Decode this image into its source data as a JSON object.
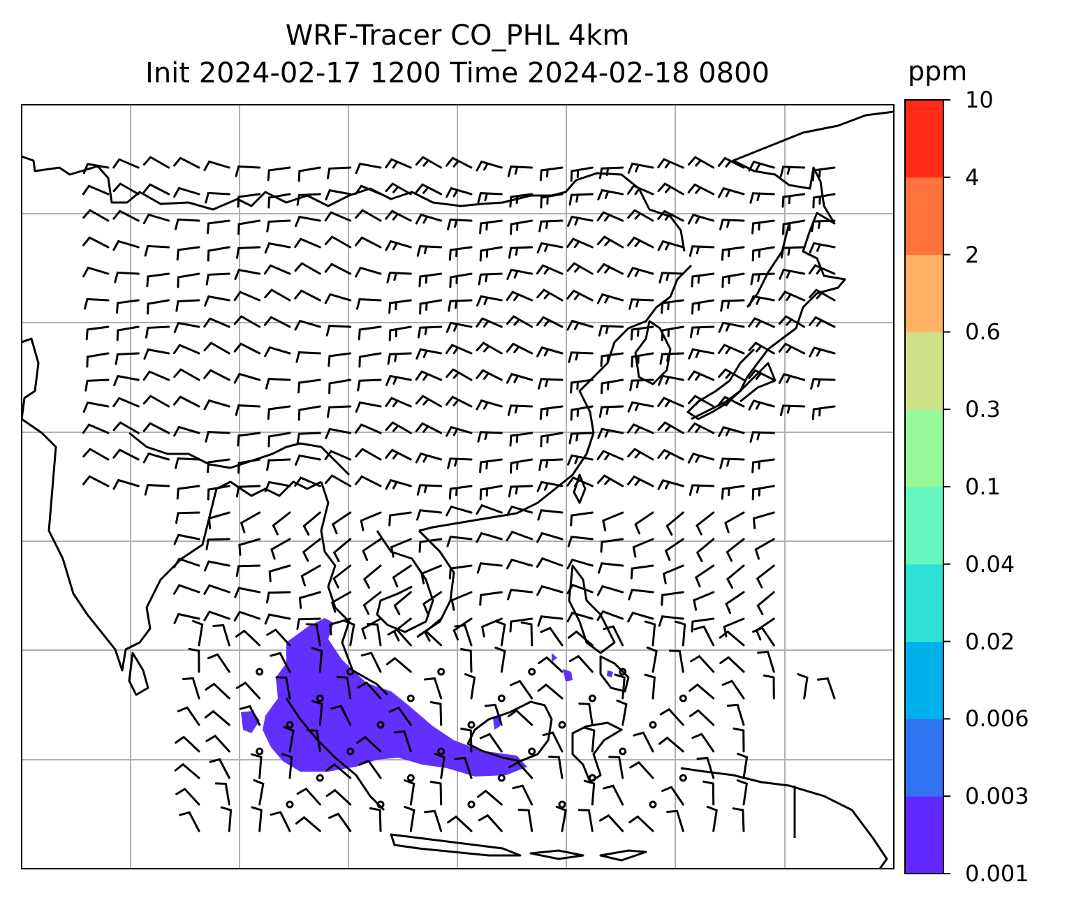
{
  "title": {
    "line1": "WRF-Tracer CO_PHL 4km",
    "line2": "Init 2024-02-17 1200 Time 2024-02-18 0800"
  },
  "map": {
    "region": "Asia",
    "gridlines": true,
    "tracer_color": "#6130ff",
    "coastline_color": "#000000",
    "gridline_color": "#b0b0b0",
    "wind_barbs": true
  },
  "colorbar": {
    "unit": "ppm",
    "ticks": [
      "0.001",
      "0.003",
      "0.006",
      "0.02",
      "0.04",
      "0.1",
      "0.3",
      "0.6",
      "2",
      "4",
      "10"
    ],
    "colors": [
      "#6129ff",
      "#3074f4",
      "#00b2ec",
      "#2fe0d6",
      "#66f7c0",
      "#99f89a",
      "#cee189",
      "#ffb163",
      "#ff733d",
      "#ff2b18"
    ]
  }
}
